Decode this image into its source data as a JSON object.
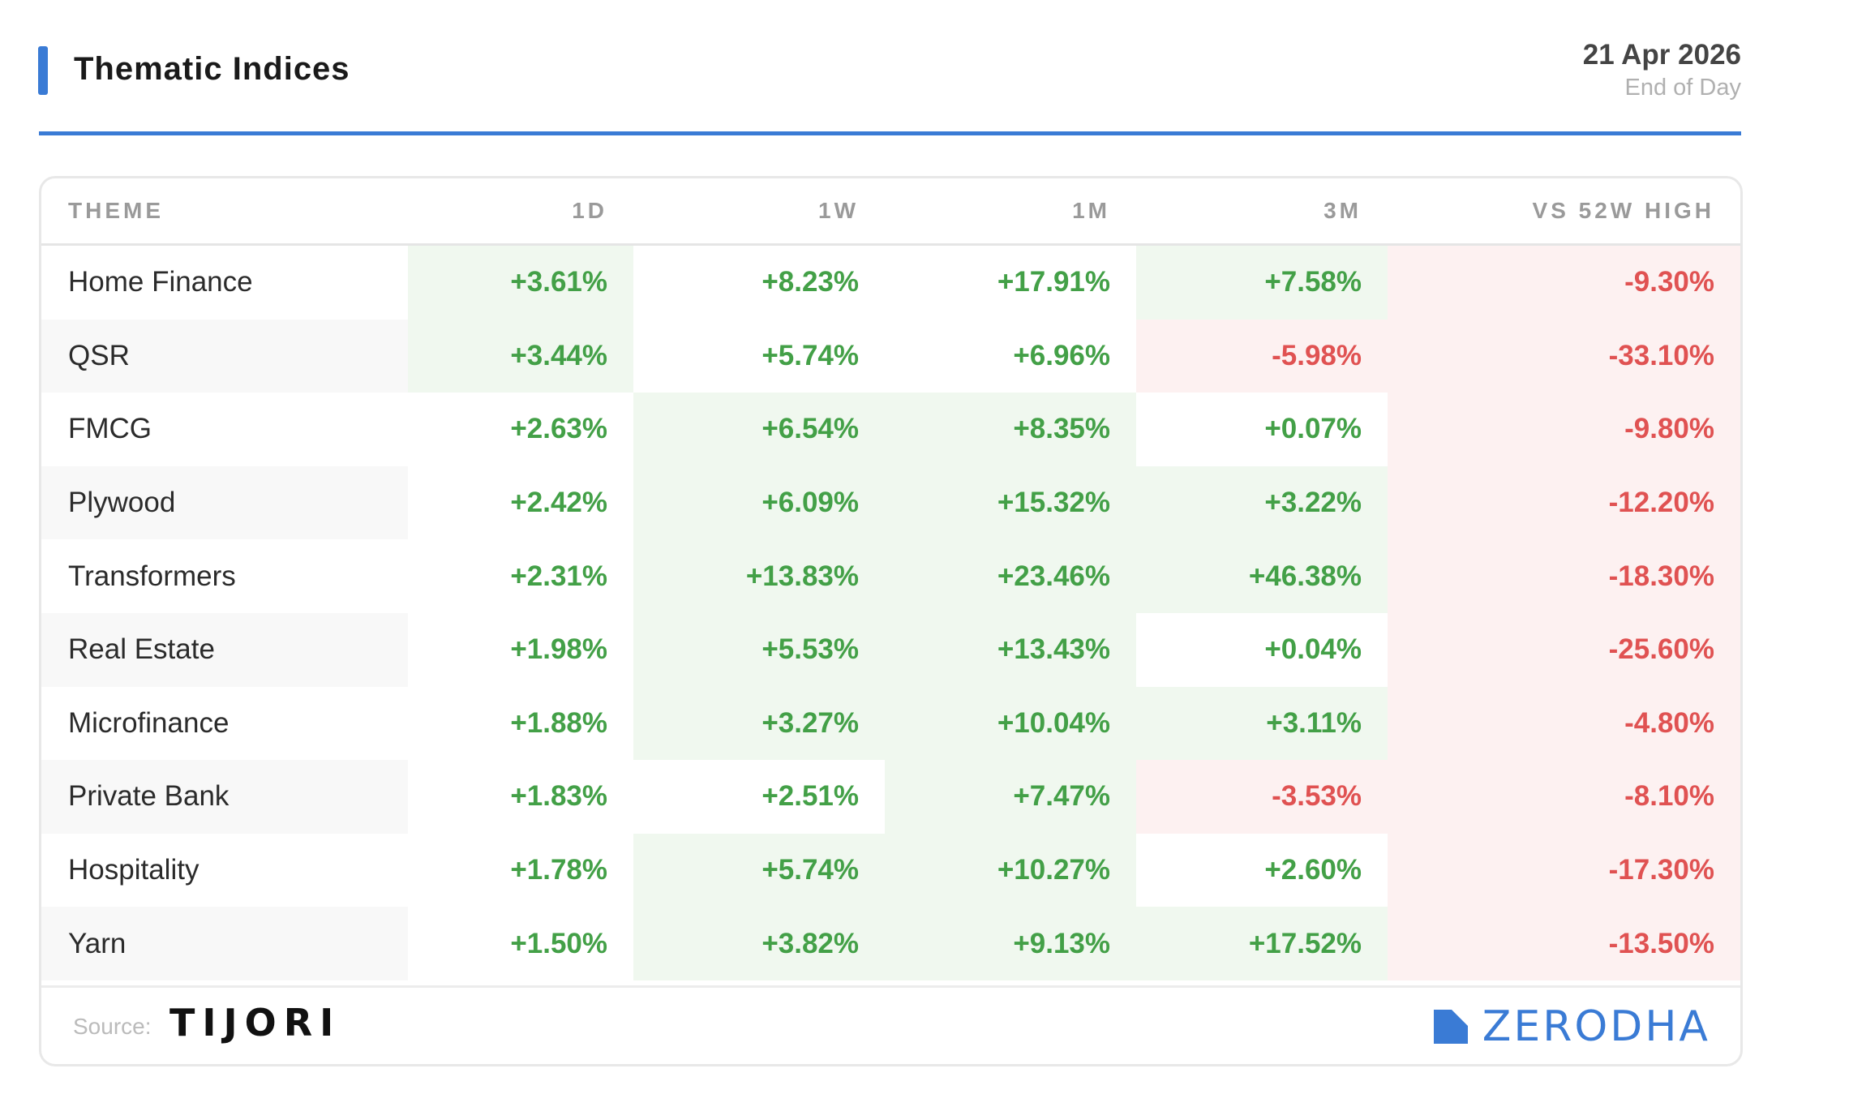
{
  "header": {
    "title": "Thematic Indices",
    "date": "21 Apr 2026",
    "date_sub": "End of Day",
    "accent_color": "#3a7bd5"
  },
  "table": {
    "columns": [
      "THEME",
      "1D",
      "1W",
      "1M",
      "3M",
      "VS 52W HIGH"
    ],
    "rows": [
      {
        "theme": "Home Finance",
        "d1": "+3.61%",
        "w1": "+8.23%",
        "m1": "+17.91%",
        "m3": "+7.58%",
        "vs52": "-9.30%",
        "bg": [
          "pos",
          "none",
          "none",
          "pos",
          "neg"
        ]
      },
      {
        "theme": "QSR",
        "d1": "+3.44%",
        "w1": "+5.74%",
        "m1": "+6.96%",
        "m3": "-5.98%",
        "vs52": "-33.10%",
        "bg": [
          "pos",
          "none",
          "none",
          "neg",
          "neg"
        ]
      },
      {
        "theme": "FMCG",
        "d1": "+2.63%",
        "w1": "+6.54%",
        "m1": "+8.35%",
        "m3": "+0.07%",
        "vs52": "-9.80%",
        "bg": [
          "none",
          "pos",
          "pos",
          "none",
          "neg"
        ]
      },
      {
        "theme": "Plywood",
        "d1": "+2.42%",
        "w1": "+6.09%",
        "m1": "+15.32%",
        "m3": "+3.22%",
        "vs52": "-12.20%",
        "bg": [
          "none",
          "pos",
          "pos",
          "pos",
          "neg"
        ]
      },
      {
        "theme": "Transformers",
        "d1": "+2.31%",
        "w1": "+13.83%",
        "m1": "+23.46%",
        "m3": "+46.38%",
        "vs52": "-18.30%",
        "bg": [
          "none",
          "pos",
          "pos",
          "pos",
          "neg"
        ]
      },
      {
        "theme": "Real Estate",
        "d1": "+1.98%",
        "w1": "+5.53%",
        "m1": "+13.43%",
        "m3": "+0.04%",
        "vs52": "-25.60%",
        "bg": [
          "none",
          "pos",
          "pos",
          "none",
          "neg"
        ]
      },
      {
        "theme": "Microfinance",
        "d1": "+1.88%",
        "w1": "+3.27%",
        "m1": "+10.04%",
        "m3": "+3.11%",
        "vs52": "-4.80%",
        "bg": [
          "none",
          "pos",
          "pos",
          "pos",
          "neg"
        ]
      },
      {
        "theme": "Private Bank",
        "d1": "+1.83%",
        "w1": "+2.51%",
        "m1": "+7.47%",
        "m3": "-3.53%",
        "vs52": "-8.10%",
        "bg": [
          "none",
          "none",
          "pos",
          "neg",
          "neg"
        ]
      },
      {
        "theme": "Hospitality",
        "d1": "+1.78%",
        "w1": "+5.74%",
        "m1": "+10.27%",
        "m3": "+2.60%",
        "vs52": "-17.30%",
        "bg": [
          "none",
          "pos",
          "pos",
          "none",
          "neg"
        ]
      },
      {
        "theme": "Yarn",
        "d1": "+1.50%",
        "w1": "+3.82%",
        "m1": "+9.13%",
        "m3": "+17.52%",
        "vs52": "-13.50%",
        "bg": [
          "none",
          "pos",
          "pos",
          "pos",
          "neg"
        ]
      }
    ]
  },
  "footer": {
    "source_label": "Source:",
    "source_brand": "TIJORI",
    "brand": "ZERODHA",
    "brand_color": "#3a7bd5"
  },
  "colors": {
    "positive": "#43a047",
    "negative": "#e05252",
    "positive_bg": "#f0f8ef",
    "negative_bg": "#fdf1f1"
  }
}
